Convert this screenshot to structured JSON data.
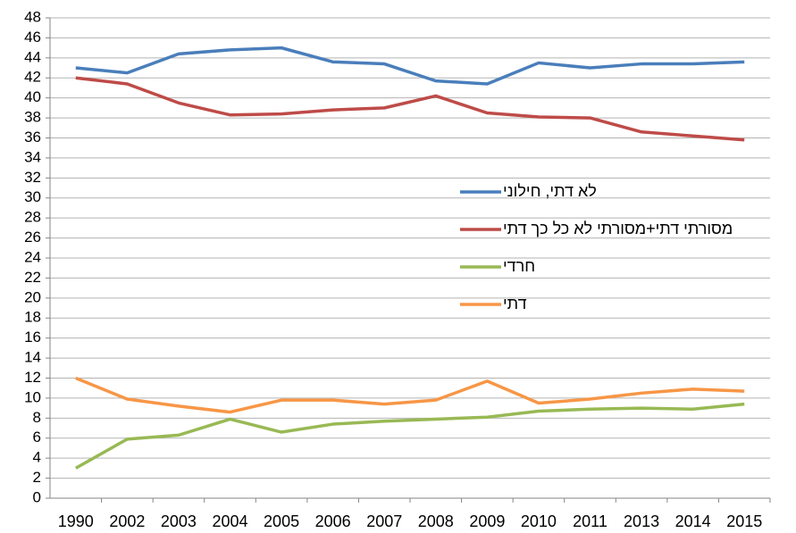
{
  "chart_data": {
    "type": "line",
    "categories": [
      "1990",
      "2002",
      "2003",
      "2004",
      "2005",
      "2006",
      "2007",
      "2008",
      "2009",
      "2010",
      "2011",
      "2013",
      "2014",
      "2015"
    ],
    "series": [
      {
        "name": "לא דתי, חילוני",
        "color": "#4a7ebb",
        "values": [
          43,
          42.5,
          44.4,
          44.8,
          45,
          43.6,
          43.4,
          41.7,
          41.4,
          43.5,
          43,
          43.4,
          43.4,
          43.6
        ]
      },
      {
        "name": "מסורתי דתי+מסורתי לא כל כך דתי",
        "color": "#be4b48",
        "values": [
          42,
          41.4,
          39.5,
          38.3,
          38.4,
          38.8,
          39,
          40.2,
          38.5,
          38.1,
          38,
          36.6,
          36.2,
          35.8
        ]
      },
      {
        "name": "חרדי",
        "color": "#98b954",
        "values": [
          3,
          5.9,
          6.3,
          7.9,
          6.6,
          7.4,
          7.7,
          7.9,
          8.1,
          8.7,
          8.9,
          9,
          8.9,
          9.4
        ]
      },
      {
        "name": "דתי",
        "color": "#f79646",
        "values": [
          12,
          9.9,
          9.2,
          8.6,
          9.8,
          9.8,
          9.4,
          9.8,
          11.7,
          9.5,
          9.9,
          10.5,
          10.9,
          10.7
        ]
      }
    ],
    "ylim": [
      0,
      48
    ],
    "yticks": [
      0,
      2,
      4,
      6,
      8,
      10,
      12,
      14,
      16,
      18,
      20,
      22,
      24,
      26,
      28,
      30,
      32,
      34,
      36,
      38,
      40,
      42,
      44,
      46,
      48
    ],
    "grid": true,
    "legend": "right"
  }
}
